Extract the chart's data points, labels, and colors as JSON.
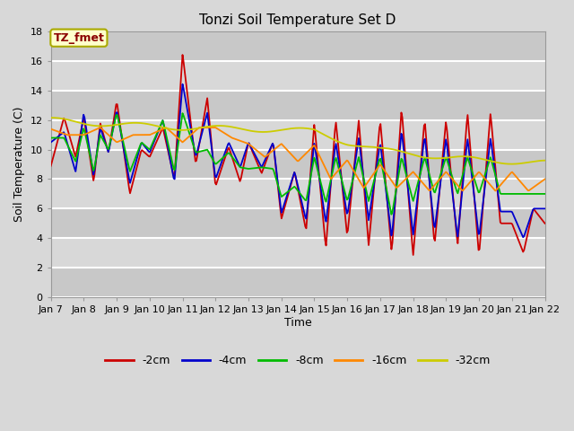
{
  "title": "Tonzi Soil Temperature Set D",
  "xlabel": "Time",
  "ylabel": "Soil Temperature (C)",
  "ylim": [
    0,
    18
  ],
  "yticks": [
    0,
    2,
    4,
    6,
    8,
    10,
    12,
    14,
    16,
    18
  ],
  "annotation": "TZ_fmet",
  "annotation_box_color": "#ffffcc",
  "annotation_text_color": "#8b0000",
  "annotation_edge_color": "#aaaa00",
  "figure_bg": "#d8d8d8",
  "plot_bg": "#d8d8d8",
  "grid_color": "#ffffff",
  "series_colors": {
    "-2cm": "#cc0000",
    "-4cm": "#0000cc",
    "-8cm": "#00bb00",
    "-16cm": "#ff8800",
    "-32cm": "#cccc00"
  },
  "x_labels": [
    "Jan 7",
    "Jan 8",
    "Jan 9",
    "Jan 10",
    "Jan 11",
    "Jan 12",
    "Jan 13",
    "Jan 14",
    "Jan 15",
    "Jan 16",
    "Jan 17",
    "Jan 18",
    "Jan 19",
    "Jan 20",
    "Jan 21",
    "Jan 22"
  ],
  "legend_labels": [
    "-2cm",
    "-4cm",
    "-8cm",
    "-16cm",
    "-32cm"
  ],
  "red_ctrl_t": [
    0,
    0.4,
    0.75,
    1.0,
    1.3,
    1.5,
    1.75,
    2.0,
    2.4,
    2.75,
    3.0,
    3.4,
    3.75,
    4.0,
    4.4,
    4.75,
    5.0,
    5.4,
    5.75,
    6.0,
    6.4,
    6.75,
    7.0,
    7.4,
    7.75,
    8.0,
    8.35,
    8.65,
    9.0,
    9.35,
    9.65,
    10.0,
    10.35,
    10.65,
    11.0,
    11.35,
    11.65,
    12.0,
    12.35,
    12.65,
    13.0,
    13.35,
    13.65,
    14.0,
    14.35,
    14.65,
    15.0
  ],
  "red_ctrl_v": [
    8.9,
    12.2,
    9.5,
    12.2,
    7.8,
    11.8,
    9.8,
    13.3,
    7.0,
    10.0,
    9.5,
    11.5,
    8.0,
    16.5,
    9.0,
    13.5,
    7.5,
    10.2,
    7.8,
    10.5,
    8.4,
    10.5,
    5.3,
    8.5,
    4.5,
    11.8,
    3.3,
    12.0,
    4.1,
    12.0,
    3.5,
    12.0,
    3.0,
    12.8,
    2.8,
    12.1,
    3.5,
    12.0,
    3.5,
    12.5,
    2.8,
    12.5,
    5.0,
    5.0,
    3.0,
    6.0,
    5.0
  ],
  "blue_ctrl_t": [
    0,
    0.4,
    0.75,
    1.0,
    1.3,
    1.5,
    1.75,
    2.0,
    2.4,
    2.75,
    3.0,
    3.4,
    3.75,
    4.0,
    4.4,
    4.75,
    5.0,
    5.4,
    5.75,
    6.0,
    6.4,
    6.75,
    7.0,
    7.4,
    7.75,
    8.0,
    8.35,
    8.65,
    9.0,
    9.35,
    9.65,
    10.0,
    10.35,
    10.65,
    11.0,
    11.35,
    11.65,
    12.0,
    12.35,
    12.65,
    13.0,
    13.35,
    13.65,
    14.0,
    14.35,
    14.65,
    15.0
  ],
  "blue_ctrl_v": [
    10.5,
    11.2,
    8.5,
    12.5,
    8.2,
    11.5,
    9.8,
    12.7,
    7.7,
    10.5,
    9.8,
    12.0,
    7.8,
    14.5,
    9.5,
    12.5,
    8.0,
    10.5,
    8.8,
    10.5,
    8.8,
    10.5,
    5.7,
    8.5,
    5.2,
    10.5,
    5.0,
    10.5,
    5.5,
    10.8,
    5.2,
    10.5,
    4.0,
    11.3,
    4.2,
    11.0,
    4.5,
    10.8,
    4.0,
    10.8,
    4.0,
    10.8,
    5.8,
    5.8,
    4.0,
    6.0,
    6.0
  ],
  "green_ctrl_t": [
    0,
    0.4,
    0.75,
    1.0,
    1.3,
    1.5,
    1.75,
    2.0,
    2.4,
    2.75,
    3.0,
    3.4,
    3.75,
    4.0,
    4.4,
    4.75,
    5.0,
    5.4,
    5.75,
    6.0,
    6.4,
    6.75,
    7.0,
    7.4,
    7.75,
    8.0,
    8.35,
    8.65,
    9.0,
    9.35,
    9.65,
    10.0,
    10.35,
    10.65,
    11.0,
    11.35,
    11.65,
    12.0,
    12.35,
    12.65,
    13.0,
    13.35,
    13.65,
    14.0,
    14.35,
    14.65,
    15.0
  ],
  "green_ctrl_v": [
    10.8,
    10.8,
    9.2,
    11.5,
    8.5,
    11.0,
    10.0,
    12.5,
    8.5,
    10.5,
    10.0,
    12.0,
    8.5,
    12.5,
    9.8,
    10.0,
    9.0,
    9.8,
    8.8,
    8.7,
    8.8,
    8.7,
    6.8,
    7.5,
    6.5,
    9.5,
    6.4,
    9.5,
    6.5,
    9.5,
    6.5,
    9.5,
    5.5,
    9.5,
    6.5,
    9.5,
    7.0,
    9.5,
    7.0,
    9.5,
    7.0,
    9.5,
    7.0,
    7.0,
    7.0,
    7.0,
    7.0
  ],
  "orange_ctrl_t": [
    0,
    0.5,
    1.0,
    1.5,
    2.0,
    2.5,
    3.0,
    3.5,
    4.0,
    4.5,
    5.0,
    5.5,
    6.0,
    6.5,
    7.0,
    7.5,
    8.0,
    8.5,
    9.0,
    9.5,
    10.0,
    10.5,
    11.0,
    11.5,
    12.0,
    12.5,
    13.0,
    13.5,
    14.0,
    14.5,
    15.0
  ],
  "orange_ctrl_v": [
    11.4,
    11.0,
    11.0,
    11.5,
    10.5,
    11.0,
    11.0,
    11.5,
    10.5,
    11.5,
    11.5,
    10.8,
    10.4,
    9.5,
    10.4,
    9.2,
    10.3,
    8.0,
    9.3,
    7.4,
    9.0,
    7.4,
    8.5,
    7.2,
    8.5,
    7.2,
    8.5,
    7.2,
    8.5,
    7.2,
    8.0
  ],
  "yellow_ctrl_t": [
    0,
    1,
    2,
    3,
    4,
    5,
    6,
    7,
    8,
    9,
    10,
    11,
    12,
    13,
    14,
    15
  ],
  "yellow_ctrl_v": [
    12.0,
    11.85,
    11.7,
    11.6,
    11.5,
    11.45,
    11.4,
    11.35,
    11.25,
    10.5,
    9.95,
    9.75,
    9.45,
    9.3,
    9.2,
    9.1
  ]
}
